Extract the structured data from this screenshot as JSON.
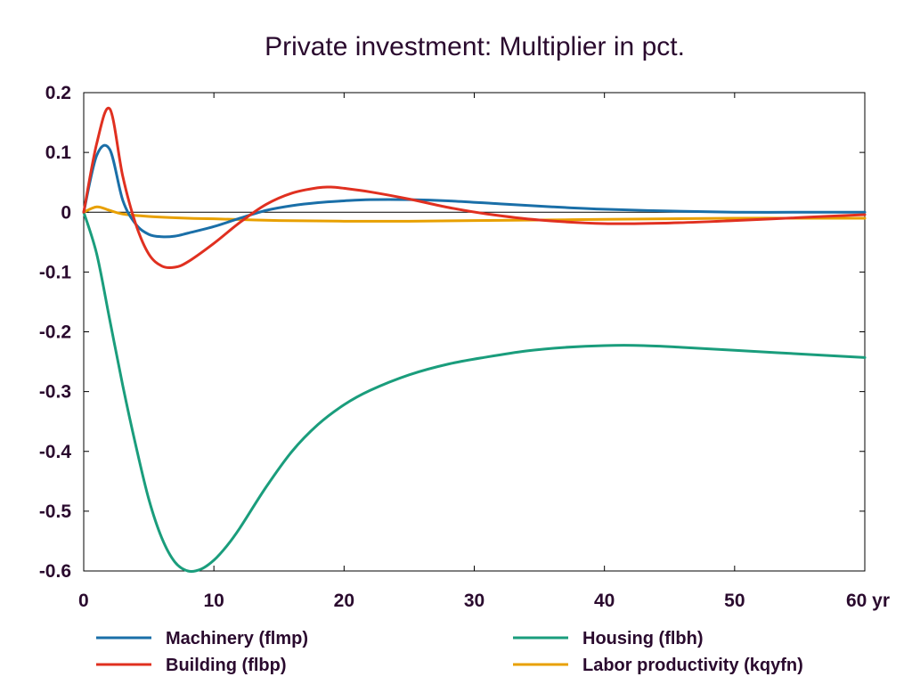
{
  "chart_data": {
    "type": "line",
    "title": "Private investment: Multiplier in pct.",
    "xlabel": "",
    "ylabel": "",
    "xlim": [
      0,
      60
    ],
    "ylim": [
      -0.6,
      0.2
    ],
    "x_ticks": [
      {
        "value": 0,
        "label": "0"
      },
      {
        "value": 10,
        "label": "10"
      },
      {
        "value": 20,
        "label": "20"
      },
      {
        "value": 30,
        "label": "30"
      },
      {
        "value": 40,
        "label": "40"
      },
      {
        "value": 50,
        "label": "50"
      },
      {
        "value": 60,
        "label": "60 yr"
      }
    ],
    "y_ticks": [
      {
        "value": 0.2,
        "label": "0.2"
      },
      {
        "value": 0.1,
        "label": "0.1"
      },
      {
        "value": 0,
        "label": "0"
      },
      {
        "value": -0.1,
        "label": "-0.1"
      },
      {
        "value": -0.2,
        "label": "-0.2"
      },
      {
        "value": -0.3,
        "label": "-0.3"
      },
      {
        "value": -0.4,
        "label": "-0.4"
      },
      {
        "value": -0.5,
        "label": "-0.5"
      },
      {
        "value": -0.6,
        "label": "-0.6"
      }
    ],
    "grid": false,
    "zero_line": true,
    "legend_position": "bottom",
    "series": [
      {
        "name": "Machinery (flmp)",
        "color": "#1a6fa8",
        "points": [
          [
            0,
            0
          ],
          [
            1,
            0.095
          ],
          [
            2,
            0.105
          ],
          [
            3,
            0.02
          ],
          [
            4,
            -0.02
          ],
          [
            5,
            -0.037
          ],
          [
            6,
            -0.041
          ],
          [
            7,
            -0.04
          ],
          [
            8,
            -0.035
          ],
          [
            10,
            -0.024
          ],
          [
            12,
            -0.01
          ],
          [
            14,
            0.003
          ],
          [
            16,
            0.011
          ],
          [
            18,
            0.016
          ],
          [
            20,
            0.019
          ],
          [
            22,
            0.021
          ],
          [
            25,
            0.021
          ],
          [
            28,
            0.019
          ],
          [
            32,
            0.014
          ],
          [
            36,
            0.009
          ],
          [
            40,
            0.005
          ],
          [
            45,
            0.002
          ],
          [
            50,
            0.0
          ],
          [
            55,
            0.0
          ],
          [
            60,
            0.0
          ]
        ]
      },
      {
        "name": "Building (flbp)",
        "color": "#e03020",
        "points": [
          [
            0,
            0
          ],
          [
            1,
            0.115
          ],
          [
            2,
            0.173
          ],
          [
            3,
            0.06
          ],
          [
            4,
            -0.02
          ],
          [
            5,
            -0.07
          ],
          [
            6,
            -0.09
          ],
          [
            7,
            -0.092
          ],
          [
            8,
            -0.083
          ],
          [
            10,
            -0.052
          ],
          [
            12,
            -0.017
          ],
          [
            14,
            0.013
          ],
          [
            16,
            0.032
          ],
          [
            18,
            0.041
          ],
          [
            19,
            0.042
          ],
          [
            20,
            0.04
          ],
          [
            22,
            0.034
          ],
          [
            25,
            0.022
          ],
          [
            28,
            0.008
          ],
          [
            31,
            -0.003
          ],
          [
            35,
            -0.013
          ],
          [
            40,
            -0.019
          ],
          [
            45,
            -0.018
          ],
          [
            50,
            -0.014
          ],
          [
            55,
            -0.009
          ],
          [
            60,
            -0.004
          ]
        ]
      },
      {
        "name": "Housing (flbh)",
        "color": "#1a9d7c",
        "points": [
          [
            0,
            0
          ],
          [
            1,
            -0.07
          ],
          [
            2,
            -0.18
          ],
          [
            3,
            -0.29
          ],
          [
            4,
            -0.39
          ],
          [
            5,
            -0.48
          ],
          [
            6,
            -0.545
          ],
          [
            7,
            -0.585
          ],
          [
            8,
            -0.6
          ],
          [
            9,
            -0.597
          ],
          [
            10,
            -0.582
          ],
          [
            11,
            -0.558
          ],
          [
            12,
            -0.528
          ],
          [
            14,
            -0.46
          ],
          [
            16,
            -0.4
          ],
          [
            18,
            -0.355
          ],
          [
            20,
            -0.322
          ],
          [
            22,
            -0.298
          ],
          [
            25,
            -0.272
          ],
          [
            28,
            -0.254
          ],
          [
            31,
            -0.242
          ],
          [
            34,
            -0.232
          ],
          [
            37,
            -0.226
          ],
          [
            40,
            -0.223
          ],
          [
            43,
            -0.223
          ],
          [
            46,
            -0.226
          ],
          [
            50,
            -0.231
          ],
          [
            55,
            -0.237
          ],
          [
            60,
            -0.243
          ]
        ]
      },
      {
        "name": "Labor productivity (kqyfn)",
        "color": "#e8a000",
        "points": [
          [
            0,
            0
          ],
          [
            1,
            0.009
          ],
          [
            2,
            0.003
          ],
          [
            3,
            -0.003
          ],
          [
            5,
            -0.007
          ],
          [
            8,
            -0.01
          ],
          [
            10,
            -0.011
          ],
          [
            15,
            -0.014
          ],
          [
            20,
            -0.015
          ],
          [
            25,
            -0.015
          ],
          [
            30,
            -0.014
          ],
          [
            35,
            -0.013
          ],
          [
            40,
            -0.012
          ],
          [
            45,
            -0.011
          ],
          [
            50,
            -0.01
          ],
          [
            55,
            -0.01
          ],
          [
            60,
            -0.01
          ]
        ]
      }
    ]
  }
}
